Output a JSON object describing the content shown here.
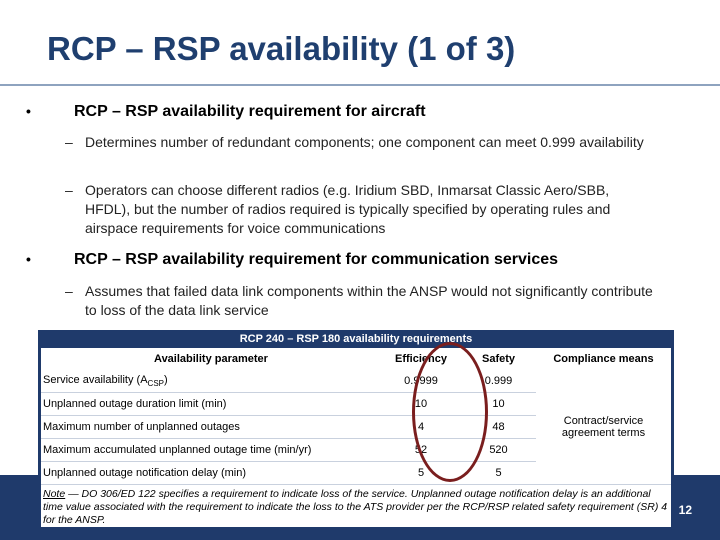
{
  "slide": {
    "title": "RCP – RSP availability (1 of 3)",
    "page_number": "12"
  },
  "bullets": [
    {
      "text": "RCP – RSP availability requirement for aircraft",
      "subs": [
        "Determines number of redundant components; one component can meet 0.999 availability",
        "Operators can choose different radios (e.g. Iridium SBD, Inmarsat Classic Aero/SBB, HFDL), but the number of radios required is typically specified by operating rules and airspace requirements for voice communications"
      ]
    },
    {
      "text": "RCP – RSP availability requirement for communication services",
      "subs": [
        "Assumes that failed data link components within the ANSP would not significantly contribute to loss of the data link service"
      ]
    }
  ],
  "table": {
    "caption": "RCP 240 – RSP 180 availability requirements",
    "headers": {
      "parameter": "Availability parameter",
      "efficiency": "Efficiency",
      "safety": "Safety",
      "compliance": "Compliance means"
    },
    "rows": [
      {
        "parameter": "Service availability (A",
        "sub": "CSP",
        "tail": ")",
        "efficiency": "0.9999",
        "safety": "0.999"
      },
      {
        "parameter": "Unplanned outage duration limit (min)",
        "efficiency": "10",
        "safety": "10"
      },
      {
        "parameter": "Maximum number of unplanned outages",
        "efficiency": "4",
        "safety": "48"
      },
      {
        "parameter": "Maximum accumulated unplanned outage time (min/yr)",
        "efficiency": "52",
        "safety": "520"
      },
      {
        "parameter": "Unplanned outage notification delay (min)",
        "efficiency": "5",
        "safety": "5"
      }
    ],
    "compliance_text": "Contract/service agreement terms",
    "note_label": "Note",
    "note_text": " — DO 306/ED 122 specifies a requirement to indicate loss of the service.  Unplanned outage notification delay is an additional time value associated with the requirement to indicate the loss to the ATS provider per the RCP/RSP related safety requirement (SR) 4 for the ANSP."
  }
}
